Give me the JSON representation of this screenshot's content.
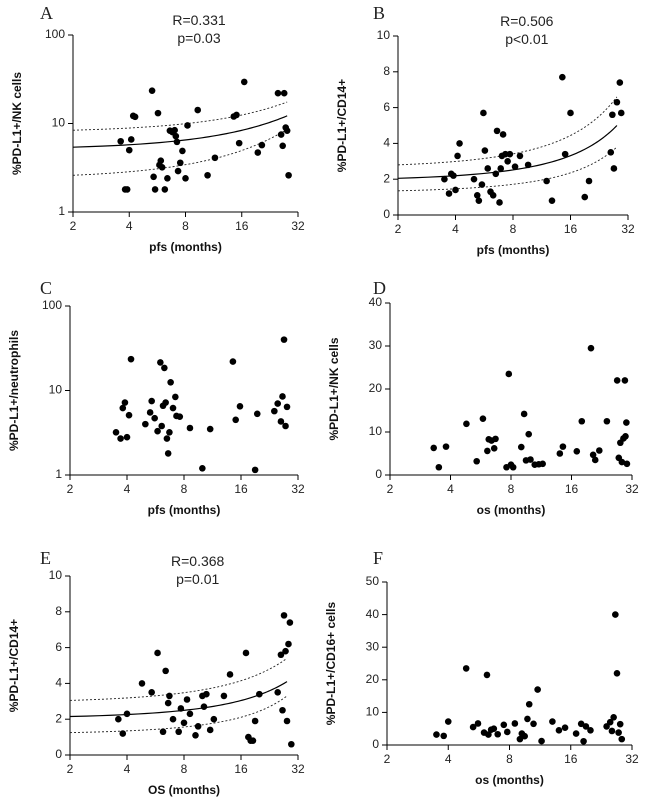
{
  "chart_data": [
    {
      "panel": "A",
      "type": "scatter",
      "xlabel": "pfs (months)",
      "ylabel": "%PD-L1+/NK cells",
      "xscale": "log2",
      "yscale": "log10",
      "xlim": [
        2,
        32
      ],
      "ylim": [
        1,
        100
      ],
      "xticks": [
        "2",
        "4",
        "8",
        "16",
        "32"
      ],
      "yticks": [
        "1",
        "10",
        "100"
      ],
      "stats": [
        "R=0.331",
        "p=0.03"
      ],
      "fit": {
        "kind": "exponential",
        "x0": 2,
        "y0": 5.4,
        "x1": 28,
        "y1": 12.2,
        "ci_upper_x0": 8.4,
        "ci_upper_x1": 17.5,
        "ci_lower_x0": 2.6,
        "ci_lower_x1": 8.6
      },
      "points": [
        [
          3.6,
          6.3
        ],
        [
          3.8,
          1.8
        ],
        [
          3.9,
          1.8
        ],
        [
          4.0,
          5.0
        ],
        [
          4.1,
          6.6
        ],
        [
          4.2,
          12.2
        ],
        [
          4.3,
          11.9
        ],
        [
          5.3,
          23.5
        ],
        [
          5.4,
          2.5
        ],
        [
          5.5,
          1.8
        ],
        [
          5.7,
          13.1
        ],
        [
          5.8,
          3.4
        ],
        [
          5.9,
          3.8
        ],
        [
          6.0,
          3.2
        ],
        [
          6.2,
          1.8
        ],
        [
          6.4,
          2.4
        ],
        [
          6.6,
          8.3
        ],
        [
          6.8,
          8.0
        ],
        [
          7.0,
          8.4
        ],
        [
          7.1,
          7.2
        ],
        [
          7.2,
          6.2
        ],
        [
          7.3,
          2.9
        ],
        [
          7.5,
          3.6
        ],
        [
          7.7,
          4.9
        ],
        [
          8.0,
          2.4
        ],
        [
          8.2,
          9.5
        ],
        [
          9.3,
          14.2
        ],
        [
          10.5,
          2.6
        ],
        [
          11.5,
          4.1
        ],
        [
          14.5,
          12.0
        ],
        [
          15.0,
          12.5
        ],
        [
          15.5,
          6.0
        ],
        [
          16.5,
          29.5
        ],
        [
          19.5,
          4.7
        ],
        [
          20.5,
          5.7
        ],
        [
          25.0,
          22.0
        ],
        [
          26.0,
          7.5
        ],
        [
          26.5,
          5.6
        ],
        [
          27.0,
          22.0
        ],
        [
          27.5,
          9.0
        ],
        [
          28.0,
          8.3
        ],
        [
          28.5,
          2.6
        ]
      ]
    },
    {
      "panel": "B",
      "type": "scatter",
      "xlabel": "pfs (months)",
      "ylabel": "%PD-L1+/CD14+",
      "xscale": "log2",
      "yscale": "linear",
      "xlim": [
        2,
        32
      ],
      "ylim": [
        0,
        10
      ],
      "xticks": [
        "2",
        "4",
        "8",
        "16",
        "32"
      ],
      "yticks": [
        "0",
        "2",
        "4",
        "6",
        "8",
        "10"
      ],
      "stats": [
        "R=0.506",
        "p<0.01"
      ],
      "fit": {
        "kind": "exponential",
        "x0": 2,
        "y0": 2.05,
        "x1": 28,
        "y1": 5.0,
        "ci_upper_x0": 2.8,
        "ci_upper_x1": 6.6,
        "ci_lower_x0": 1.35,
        "ci_lower_x1": 3.8
      },
      "points": [
        [
          3.5,
          2.0
        ],
        [
          3.7,
          1.2
        ],
        [
          3.8,
          2.3
        ],
        [
          3.9,
          2.2
        ],
        [
          4.0,
          1.4
        ],
        [
          4.1,
          3.3
        ],
        [
          4.2,
          4.0
        ],
        [
          5.0,
          2.0
        ],
        [
          5.2,
          1.1
        ],
        [
          5.3,
          0.8
        ],
        [
          5.5,
          1.7
        ],
        [
          5.6,
          5.7
        ],
        [
          5.7,
          3.6
        ],
        [
          5.9,
          2.6
        ],
        [
          6.1,
          1.3
        ],
        [
          6.3,
          1.1
        ],
        [
          6.5,
          2.3
        ],
        [
          6.6,
          4.7
        ],
        [
          6.8,
          0.7
        ],
        [
          6.9,
          2.6
        ],
        [
          7.0,
          3.3
        ],
        [
          7.1,
          4.5
        ],
        [
          7.3,
          3.4
        ],
        [
          7.5,
          3.0
        ],
        [
          7.7,
          3.4
        ],
        [
          8.2,
          2.7
        ],
        [
          8.7,
          3.3
        ],
        [
          9.6,
          2.8
        ],
        [
          12.0,
          1.9
        ],
        [
          12.8,
          0.8
        ],
        [
          14.5,
          7.7
        ],
        [
          15.0,
          3.4
        ],
        [
          16.0,
          5.7
        ],
        [
          19.0,
          1.0
        ],
        [
          20.0,
          1.9
        ],
        [
          26.0,
          3.5
        ],
        [
          26.5,
          5.6
        ],
        [
          27.0,
          2.6
        ],
        [
          28.0,
          6.3
        ],
        [
          29.0,
          7.4
        ],
        [
          29.5,
          5.7
        ]
      ]
    },
    {
      "panel": "C",
      "type": "scatter",
      "xlabel": "pfs (months)",
      "ylabel": "%PD-L1+/neutrophils",
      "xscale": "log2",
      "yscale": "log10",
      "xlim": [
        2,
        32
      ],
      "ylim": [
        1,
        100
      ],
      "xticks": [
        "2",
        "4",
        "8",
        "16",
        "32"
      ],
      "yticks": [
        "1",
        "10",
        "100"
      ],
      "points": [
        [
          3.5,
          3.2
        ],
        [
          3.7,
          2.7
        ],
        [
          3.8,
          6.2
        ],
        [
          3.9,
          7.2
        ],
        [
          4.0,
          2.8
        ],
        [
          4.1,
          5.1
        ],
        [
          4.2,
          23.5
        ],
        [
          5.0,
          4.0
        ],
        [
          5.3,
          5.5
        ],
        [
          5.4,
          7.5
        ],
        [
          5.6,
          4.7
        ],
        [
          5.8,
          3.3
        ],
        [
          6.0,
          21.5
        ],
        [
          6.1,
          3.8
        ],
        [
          6.2,
          6.6
        ],
        [
          6.3,
          18.5
        ],
        [
          6.4,
          7.2
        ],
        [
          6.5,
          2.7
        ],
        [
          6.6,
          1.8
        ],
        [
          6.7,
          3.2
        ],
        [
          6.8,
          12.5
        ],
        [
          7.0,
          6.2
        ],
        [
          7.2,
          8.4
        ],
        [
          7.3,
          5.0
        ],
        [
          7.6,
          4.9
        ],
        [
          8.6,
          3.6
        ],
        [
          10.0,
          1.2
        ],
        [
          11.0,
          3.5
        ],
        [
          14.5,
          22.0
        ],
        [
          15.0,
          4.5
        ],
        [
          15.8,
          6.5
        ],
        [
          19.0,
          1.15
        ],
        [
          19.5,
          5.3
        ],
        [
          24.0,
          5.7
        ],
        [
          25.0,
          7.0
        ],
        [
          26.0,
          4.3
        ],
        [
          26.5,
          8.5
        ],
        [
          27.0,
          40.0
        ],
        [
          27.5,
          3.8
        ],
        [
          28.0,
          6.4
        ]
      ]
    },
    {
      "panel": "D",
      "type": "scatter",
      "xlabel": "os (months)",
      "ylabel": "%PD-L1+/NK cells",
      "xscale": "log2",
      "yscale": "linear",
      "xlim": [
        2,
        32
      ],
      "ylim": [
        0,
        40
      ],
      "xticks": [
        "2",
        "4",
        "8",
        "16",
        "32"
      ],
      "yticks": [
        "0",
        "10",
        "20",
        "30",
        "40"
      ],
      "points": [
        [
          3.3,
          6.3
        ],
        [
          3.5,
          1.8
        ],
        [
          3.8,
          6.6
        ],
        [
          4.8,
          11.9
        ],
        [
          5.4,
          3.2
        ],
        [
          5.8,
          13.1
        ],
        [
          6.1,
          5.6
        ],
        [
          6.2,
          8.3
        ],
        [
          6.4,
          8.0
        ],
        [
          6.6,
          6.2
        ],
        [
          6.7,
          8.4
        ],
        [
          7.6,
          1.8
        ],
        [
          7.8,
          23.5
        ],
        [
          8.0,
          2.4
        ],
        [
          8.2,
          1.8
        ],
        [
          9.0,
          6.5
        ],
        [
          9.3,
          14.2
        ],
        [
          9.5,
          3.4
        ],
        [
          9.8,
          9.5
        ],
        [
          10.0,
          3.6
        ],
        [
          10.5,
          2.4
        ],
        [
          11.0,
          2.5
        ],
        [
          11.5,
          2.6
        ],
        [
          14.0,
          5.0
        ],
        [
          14.5,
          6.6
        ],
        [
          17.0,
          5.5
        ],
        [
          18.0,
          12.5
        ],
        [
          20.0,
          29.5
        ],
        [
          20.5,
          4.7
        ],
        [
          21.0,
          3.5
        ],
        [
          22.0,
          5.7
        ],
        [
          24.0,
          12.5
        ],
        [
          27.0,
          22.0
        ],
        [
          27.5,
          4.0
        ],
        [
          28.0,
          7.5
        ],
        [
          28.5,
          3.0
        ],
        [
          29.0,
          8.5
        ],
        [
          29.5,
          22.0
        ],
        [
          29.7,
          9.0
        ],
        [
          30.0,
          12.2
        ],
        [
          30.2,
          2.6
        ]
      ]
    },
    {
      "panel": "E",
      "type": "scatter",
      "xlabel": "OS  (months)",
      "ylabel": "%PD-L1+/CD14+",
      "xscale": "log2",
      "yscale": "linear",
      "xlim": [
        2,
        32
      ],
      "ylim": [
        0,
        10
      ],
      "xticks": [
        "2",
        "4",
        "8",
        "16",
        "32"
      ],
      "yticks": [
        "0",
        "2",
        "4",
        "6",
        "8",
        "10"
      ],
      "stats": [
        "R=0.368",
        "p=0.01"
      ],
      "fit": {
        "kind": "exponential",
        "x0": 2,
        "y0": 2.15,
        "x1": 28,
        "y1": 4.1,
        "ci_upper_x0": 3.05,
        "ci_upper_x1": 5.4,
        "ci_lower_x0": 1.25,
        "ci_lower_x1": 3.3
      },
      "points": [
        [
          3.6,
          2.0
        ],
        [
          3.8,
          1.2
        ],
        [
          4.0,
          2.3
        ],
        [
          4.8,
          4.0
        ],
        [
          5.4,
          3.5
        ],
        [
          5.8,
          5.7
        ],
        [
          6.2,
          1.3
        ],
        [
          6.4,
          4.7
        ],
        [
          6.6,
          2.9
        ],
        [
          6.7,
          3.3
        ],
        [
          7.0,
          2.0
        ],
        [
          7.5,
          1.3
        ],
        [
          7.7,
          2.6
        ],
        [
          8.0,
          1.8
        ],
        [
          8.3,
          3.1
        ],
        [
          8.6,
          2.3
        ],
        [
          9.2,
          1.1
        ],
        [
          9.5,
          1.6
        ],
        [
          10.0,
          3.3
        ],
        [
          10.2,
          2.7
        ],
        [
          10.5,
          3.4
        ],
        [
          11.0,
          1.4
        ],
        [
          11.5,
          2.0
        ],
        [
          13.0,
          3.3
        ],
        [
          14.0,
          4.5
        ],
        [
          17.0,
          5.7
        ],
        [
          17.5,
          1.0
        ],
        [
          18.0,
          0.8
        ],
        [
          18.5,
          0.8
        ],
        [
          19.0,
          1.9
        ],
        [
          20.0,
          3.4
        ],
        [
          25.0,
          3.5
        ],
        [
          26.0,
          5.6
        ],
        [
          26.5,
          2.5
        ],
        [
          27.0,
          7.8
        ],
        [
          27.5,
          5.8
        ],
        [
          28.0,
          1.9
        ],
        [
          28.5,
          6.2
        ],
        [
          29.0,
          7.4
        ],
        [
          29.5,
          0.6
        ]
      ]
    },
    {
      "panel": "F",
      "type": "scatter",
      "xlabel": "os (months)",
      "ylabel": "%PD-L1+/CD16+ cells",
      "xscale": "log2",
      "yscale": "linear",
      "xlim": [
        2,
        32
      ],
      "ylim": [
        0,
        50
      ],
      "xticks": [
        "2",
        "4",
        "8",
        "16",
        "32"
      ],
      "yticks": [
        "0",
        "10",
        "20",
        "30",
        "40",
        "50"
      ],
      "points": [
        [
          3.5,
          3.2
        ],
        [
          3.8,
          2.8
        ],
        [
          4.0,
          7.2
        ],
        [
          4.9,
          23.5
        ],
        [
          5.3,
          5.5
        ],
        [
          5.6,
          6.6
        ],
        [
          6.0,
          3.8
        ],
        [
          6.2,
          21.5
        ],
        [
          6.3,
          3.2
        ],
        [
          6.5,
          4.7
        ],
        [
          6.7,
          5.0
        ],
        [
          7.0,
          3.3
        ],
        [
          7.5,
          6.2
        ],
        [
          7.8,
          4.0
        ],
        [
          8.5,
          6.6
        ],
        [
          9.0,
          1.8
        ],
        [
          9.2,
          3.5
        ],
        [
          9.5,
          2.7
        ],
        [
          9.8,
          8.0
        ],
        [
          10.0,
          12.5
        ],
        [
          10.5,
          6.5
        ],
        [
          11.0,
          17.0
        ],
        [
          11.5,
          1.2
        ],
        [
          13.0,
          7.2
        ],
        [
          14.0,
          4.5
        ],
        [
          15.0,
          5.3
        ],
        [
          17.0,
          3.5
        ],
        [
          18.0,
          6.5
        ],
        [
          18.5,
          1.15
        ],
        [
          19.0,
          5.7
        ],
        [
          20.0,
          4.5
        ],
        [
          24.0,
          5.7
        ],
        [
          25.0,
          7.0
        ],
        [
          25.5,
          4.3
        ],
        [
          26.0,
          8.5
        ],
        [
          26.5,
          40.0
        ],
        [
          27.0,
          22.0
        ],
        [
          27.5,
          3.8
        ],
        [
          28.0,
          6.4
        ],
        [
          28.5,
          1.8
        ]
      ]
    }
  ]
}
